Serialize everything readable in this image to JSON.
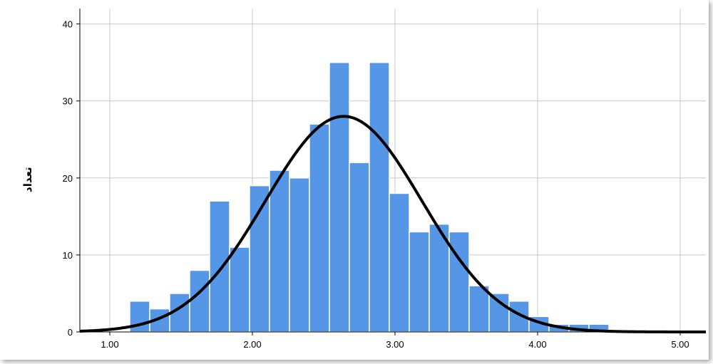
{
  "chart_data": {
    "type": "bar",
    "subtype": "histogram-with-normal-curve",
    "title": "",
    "xlabel": "",
    "ylabel": "تعداد",
    "xlim": [
      0.79,
      5.18
    ],
    "ylim": [
      0,
      42
    ],
    "xticks": [
      "1.00",
      "2.00",
      "3.00",
      "4.00",
      "5.00"
    ],
    "yticks": [
      "0",
      "10",
      "20",
      "30",
      "40"
    ],
    "grid": true,
    "bar_color": "#5596e6",
    "curve_color": "#000000",
    "bin_width": 0.14,
    "bins": [
      {
        "start": 1.14,
        "value": 4
      },
      {
        "start": 1.28,
        "value": 3
      },
      {
        "start": 1.42,
        "value": 5
      },
      {
        "start": 1.56,
        "value": 8
      },
      {
        "start": 1.7,
        "value": 17
      },
      {
        "start": 1.84,
        "value": 11
      },
      {
        "start": 1.98,
        "value": 19
      },
      {
        "start": 2.12,
        "value": 21
      },
      {
        "start": 2.26,
        "value": 20
      },
      {
        "start": 2.4,
        "value": 27
      },
      {
        "start": 2.54,
        "value": 35
      },
      {
        "start": 2.68,
        "value": 22
      },
      {
        "start": 2.82,
        "value": 35
      },
      {
        "start": 2.96,
        "value": 18
      },
      {
        "start": 3.1,
        "value": 13
      },
      {
        "start": 3.24,
        "value": 14
      },
      {
        "start": 3.38,
        "value": 13
      },
      {
        "start": 3.52,
        "value": 6
      },
      {
        "start": 3.66,
        "value": 5
      },
      {
        "start": 3.8,
        "value": 4
      },
      {
        "start": 3.94,
        "value": 2
      },
      {
        "start": 4.08,
        "value": 1
      },
      {
        "start": 4.22,
        "value": 1
      },
      {
        "start": 4.36,
        "value": 1
      }
    ],
    "normal_curve": {
      "mean": 2.64,
      "sd": 0.55,
      "peak": 28
    }
  }
}
